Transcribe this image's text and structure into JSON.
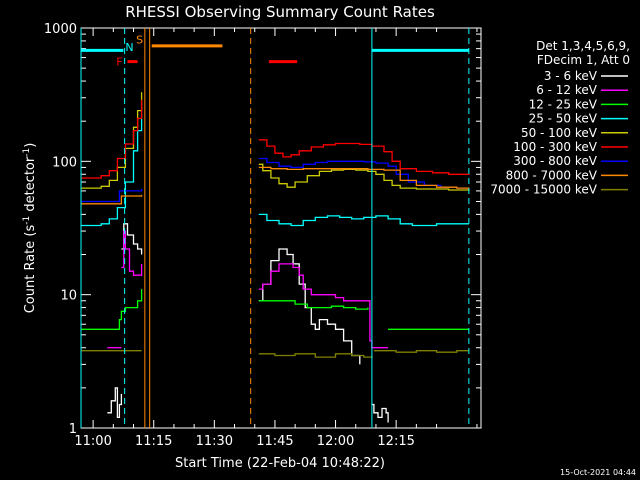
{
  "chart_data": {
    "type": "line",
    "title": "RHESSI Observing Summary Count Rates",
    "xlabel": "Start Time (22-Feb-04 10:48:22)",
    "ylabel": "Count Rate (s⁻¹ detector⁻¹)",
    "ylabel_parts": [
      "Count Rate (s",
      "-1",
      " detector",
      "-1",
      ")"
    ],
    "xlim_minutes": [
      -3,
      96
    ],
    "ylim": [
      1,
      1000
    ],
    "yscale": "log",
    "x_ticks": [
      {
        "t": 0,
        "label": "11:00"
      },
      {
        "t": 15,
        "label": "11:15"
      },
      {
        "t": 30,
        "label": "11:30"
      },
      {
        "t": 45,
        "label": "11:45"
      },
      {
        "t": 60,
        "label": "12:00"
      },
      {
        "t": 75,
        "label": "12:15"
      }
    ],
    "y_ticks": [
      {
        "v": 1,
        "label": "1"
      },
      {
        "v": 10,
        "label": "10"
      },
      {
        "v": 100,
        "label": "100"
      },
      {
        "v": 1000,
        "label": "1000"
      }
    ],
    "legend_header": [
      "Det 1,3,4,5,6,9,",
      "FDecim 1, Att 0"
    ],
    "legend_position": "right",
    "series": [
      {
        "name": "3 - 6 keV",
        "color": "#ffffff",
        "segments": [
          {
            "x": [
              3.5,
              4.5,
              5.5,
              6.0,
              6.5,
              7.0
            ],
            "y": [
              1.3,
              1.6,
              2.0,
              1.2,
              1.5,
              1.8
            ]
          },
          {
            "x": [
              7.0,
              7.6,
              8.5,
              10.0,
              11.0,
              12.0
            ],
            "y": [
              22,
              34,
              28,
              24,
              22,
              20
            ]
          },
          {
            "x": [
              41.0,
              42.0,
              44.0,
              46.0,
              48.0,
              49.5,
              51.0,
              52.5,
              54.0,
              55.0,
              56.0,
              58.0,
              60.0,
              62.0,
              64.0,
              66.0
            ],
            "y": [
              9,
              12,
              18,
              22,
              20,
              17,
              12,
              8,
              6,
              5.5,
              6.5,
              6,
              5.5,
              4.5,
              3.5,
              3.0
            ]
          },
          {
            "x": [
              69.0,
              69.5,
              70.5,
              71.5,
              72.5,
              73.0
            ],
            "y": [
              1.5,
              1.3,
              1.2,
              1.4,
              1.3,
              1.1
            ]
          }
        ]
      },
      {
        "name": "6 - 12 keV",
        "color": "#ff00ff",
        "segments": [
          {
            "x": [
              3.5,
              7.0
            ],
            "y": [
              4.0,
              4.0
            ]
          },
          {
            "x": [
              7.0,
              7.6,
              8.0,
              9.0,
              10.0,
              11.0,
              12.0
            ],
            "y": [
              16,
              30,
              22,
              15,
              14,
              14,
              17
            ]
          },
          {
            "x": [
              41.0,
              42.0,
              44.0,
              46.0,
              48.0,
              49.5,
              51.0,
              52.0,
              54.0,
              56.0,
              58.0,
              60.0,
              62.0,
              64.0,
              66.0,
              68.0
            ],
            "y": [
              11,
              12,
              15,
              17,
              17,
              16,
              14,
              11,
              10,
              10,
              10,
              9.5,
              9,
              9,
              9,
              9
            ]
          },
          {
            "x": [
              68.0,
              68.5,
              69.0,
              73.0
            ],
            "y": [
              9,
              4.5,
              4.0,
              4.0
            ]
          }
        ]
      },
      {
        "name": "12 - 25 keV",
        "color": "#00ff00",
        "segments": [
          {
            "x": [
              -3,
              6.0,
              6.5,
              7.0,
              8.0,
              10.0,
              11.0,
              12.0
            ],
            "y": [
              5.5,
              5.5,
              6.5,
              7.5,
              8.0,
              8.0,
              9.0,
              11.0
            ]
          },
          {
            "x": [
              41.0,
              44.0,
              47.0,
              50.0,
              53.0,
              56.0,
              59.0,
              62.0,
              65.0,
              68.0
            ],
            "y": [
              9,
              9,
              9,
              8.5,
              8.0,
              8.0,
              8.2,
              8.0,
              7.8,
              8.0
            ]
          },
          {
            "x": [
              73.0,
              78.0,
              83.0,
              88.0,
              93.0
            ],
            "y": [
              5.5,
              5.5,
              5.5,
              5.5,
              5.5
            ]
          }
        ]
      },
      {
        "name": "25 - 50 keV",
        "color": "#00ffff",
        "segments": [
          {
            "x": [
              -3,
              2.0,
              4.0,
              6.0,
              8.0,
              10.0,
              11.0,
              12.0
            ],
            "y": [
              33,
              34,
              37,
              45,
              70,
              120,
              170,
              230
            ]
          },
          {
            "x": [
              41.0,
              43.0,
              46.0,
              49.0,
              52.0,
              55.0,
              58.0,
              61.0,
              64.0,
              67.0,
              70.0,
              73.0,
              76.0,
              79.0,
              82.0,
              85.0,
              88.0,
              91.0,
              93.0
            ],
            "y": [
              40,
              36,
              34,
              33,
              36,
              38,
              39,
              38,
              37,
              38,
              39,
              37,
              34,
              33,
              33,
              34,
              34,
              34,
              34
            ]
          }
        ]
      },
      {
        "name": "50 - 100 keV",
        "color": "#cccc00",
        "segments": [
          {
            "x": [
              -3,
              2.0,
              4.0,
              6.0,
              8.0,
              10.0,
              11.0,
              12.0
            ],
            "y": [
              63,
              65,
              72,
              90,
              125,
              180,
              240,
              330
            ]
          },
          {
            "x": [
              41.0,
              42.0,
              44.0,
              46.0,
              48.0,
              50.0,
              53.0,
              56.0,
              59.0,
              62.0,
              65.0,
              68.0,
              70.0,
              72.0,
              74.0,
              76.0,
              80.0,
              84.0,
              88.0,
              93.0
            ],
            "y": [
              95,
              85,
              75,
              68,
              64,
              70,
              78,
              84,
              86,
              87,
              86,
              84,
              80,
              72,
              66,
              63,
              62,
              62,
              61,
              60
            ]
          }
        ]
      },
      {
        "name": "100 - 300 keV",
        "color": "#ff0000",
        "segments": [
          {
            "x": [
              -3,
              2.0,
              4.0,
              6.0,
              8.0,
              10.0,
              11.0,
              12.0
            ],
            "y": [
              75,
              78,
              85,
              105,
              135,
              170,
              210,
              290
            ]
          },
          {
            "x": [
              41.0,
              43.0,
              45.0,
              47.0,
              49.0,
              51.0,
              54.0,
              57.0,
              60.0,
              63.0,
              66.0,
              69.0,
              72.0,
              74.0,
              76.0,
              80.0,
              84.0,
              88.0,
              93.0
            ],
            "y": [
              145,
              130,
              115,
              108,
              112,
              120,
              128,
              133,
              136,
              136,
              134,
              130,
              118,
              100,
              88,
              84,
              82,
              80,
              79
            ]
          }
        ]
      },
      {
        "name": "300 - 800 keV",
        "color": "#0000ff",
        "segments": [
          {
            "x": [
              -3,
              6.0,
              6.5,
              10.0,
              12.0
            ],
            "y": [
              50,
              50,
              60,
              60,
              62
            ]
          },
          {
            "x": [
              41.0,
              43.0,
              46.0,
              49.0,
              52.0,
              55.0,
              58.0,
              61.0,
              64.0,
              67.0,
              70.0,
              73.0,
              75.0,
              78.0,
              82.0,
              86.0,
              90.0,
              93.0
            ],
            "y": [
              105,
              98,
              92,
              90,
              95,
              98,
              100,
              100,
              100,
              99,
              97,
              92,
              80,
              70,
              66,
              64,
              63,
              62
            ]
          }
        ]
      },
      {
        "name": "800 - 7000 keV",
        "color": "#ff8800",
        "segments": [
          {
            "x": [
              -3,
              6.0,
              7.0,
              10.0,
              12.0
            ],
            "y": [
              48,
              48,
              55,
              55,
              56
            ]
          },
          {
            "x": [
              41.0,
              44.0,
              48.0,
              52.0,
              56.0,
              60.0,
              64.0,
              68.0,
              72.0,
              76.0,
              80.0,
              85.0,
              90.0,
              93.0
            ],
            "y": [
              90,
              88,
              87,
              88,
              88,
              88,
              88,
              87,
              86,
              72,
              66,
              64,
              63,
              62
            ]
          }
        ]
      },
      {
        "name": "7000 - 15000 keV",
        "color": "#808000",
        "segments": [
          {
            "x": [
              -3,
              12.0
            ],
            "y": [
              3.8,
              3.8
            ]
          },
          {
            "x": [
              41.0,
              45.0,
              50.0,
              55.0,
              60.0,
              64.0,
              67.0,
              69.0
            ],
            "y": [
              3.6,
              3.5,
              3.6,
              3.4,
              3.6,
              3.5,
              3.4,
              3.5
            ]
          },
          {
            "x": [
              69.5,
              75.0,
              80.0,
              85.0,
              90.0,
              93.0
            ],
            "y": [
              3.8,
              3.7,
              3.8,
              3.7,
              3.8,
              3.8
            ]
          }
        ]
      }
    ],
    "annotations": {
      "cyan_lines": [
        {
          "x": [
            -3,
            7.5
          ],
          "y": 680
        },
        {
          "x": [
            69.0,
            93.0
          ],
          "y": 680
        }
      ],
      "orange_line": {
        "x": [
          14.5,
          32.0
        ],
        "y": 735
      },
      "red_lines": [
        {
          "x": [
            8.5,
            11.0
          ],
          "y": 560
        },
        {
          "x": [
            43.5,
            50.5
          ],
          "y": 560
        }
      ],
      "vlines_solid": [
        {
          "t": -3,
          "color": "#00ffff"
        },
        {
          "t": 12.8,
          "color": "#ff8800"
        },
        {
          "t": 14.0,
          "color": "#ff8800"
        },
        {
          "t": 69.0,
          "color": "#00ffff"
        }
      ],
      "vlines_dashed": [
        {
          "t": 7.8,
          "color": "#00ffff"
        },
        {
          "t": 39.0,
          "color": "#ff8800"
        },
        {
          "t": 93.0,
          "color": "#00ffff"
        }
      ],
      "letters": [
        {
          "text": "F",
          "color": "#ff0000",
          "t": 6.5,
          "v": 560
        },
        {
          "text": "N",
          "color": "#00ffff",
          "t": 9.0,
          "v": 720
        },
        {
          "text": "S",
          "color": "#ff8800",
          "t": 11.5,
          "v": 820
        }
      ]
    },
    "footer_stamp": "15-Oct-2021 04:44"
  }
}
